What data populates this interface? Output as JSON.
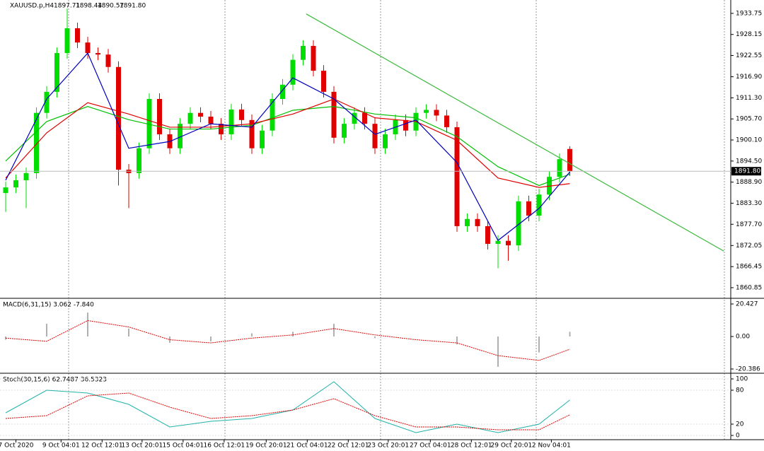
{
  "chart_data": [
    {
      "type": "candlestick",
      "title": "XAUUSD.p,H4",
      "header_values": [
        1897.71,
        1898.44,
        1890.57,
        {
          "value": 1891.8,
          "label": "1891.80"
        }
      ],
      "ylim": [
        1858.4,
        1937.3
      ],
      "yticks": [
        1933.75,
        1928.15,
        1922.55,
        {
          "value": 1916.9,
          "label": "1916.90"
        },
        {
          "value": 1911.3,
          "label": "1911.30"
        },
        {
          "value": 1905.7,
          "label": "1905.70"
        },
        {
          "value": 1900.1,
          "label": "1900.10"
        },
        {
          "value": 1894.5,
          "label": "1894.50"
        },
        {
          "value": 1888.9,
          "label": "1888.90"
        },
        {
          "value": 1883.3,
          "label": "1883.30"
        },
        {
          "value": 1877.7,
          "label": "1877.70"
        },
        1872.05,
        1866.45,
        1860.85
      ],
      "xticks": [
        {
          "value": 1,
          "label": "7 Oct 2020"
        },
        {
          "value": 5.4,
          "label": "9 Oct 04:01"
        },
        {
          "value": 9.4,
          "label": "12 Oct 12:01"
        },
        {
          "value": 13.3,
          "label": "13 Oct 20:01"
        },
        {
          "value": 17.3,
          "label": "15 Oct 04:01"
        },
        {
          "value": 21.3,
          "label": "16 Oct 12:01"
        },
        {
          "value": 25.4,
          "label": "19 Oct 20:01"
        },
        {
          "value": 29.4,
          "label": "21 Oct 04:01"
        },
        {
          "value": 33.4,
          "label": "22 Oct 12:01"
        },
        {
          "value": 37.3,
          "label": "23 Oct 20:01"
        },
        {
          "value": 41.4,
          "label": "27 Oct 04:01"
        },
        {
          "value": 45.4,
          "label": "28 Oct 12:01"
        },
        {
          "value": 49.3,
          "label": "29 Oct 20:01"
        },
        {
          "value": 53.2,
          "label": "2 Nov 04:01"
        }
      ],
      "up_color": "#00dd00",
      "down_color": "#e00000",
      "open": [
        1886.0,
        1887.5,
        1889.4,
        1891.3,
        1907.3,
        1912.9,
        1923.2,
        1929.8,
        1926.0,
        1923.2,
        1922.8,
        1919.5,
        1892.2,
        1891.3,
        1897.9,
        1911.0,
        1901.6,
        1897.9,
        1904.4,
        1907.3,
        1906.3,
        1904.4,
        1901.6,
        1908.2,
        1905.4,
        1897.9,
        1902.6,
        1911.0,
        1914.8,
        1921.4,
        1925.1,
        1918.5,
        1912.9,
        1900.7,
        1904.4,
        1907.3,
        1904.4,
        1897.9,
        1901.6,
        1905.4,
        1902.6,
        1907.3,
        1908.1,
        1906.6,
        1903.5,
        1877.2,
        1879.1,
        1877.2,
        1872.5,
        1873.3,
        1872.1,
        1883.8,
        1880.0,
        1885.6,
        1890.3,
        1897.71
      ],
      "high": [
        1889.0,
        1890.9,
        1892.8,
        1908.8,
        1914.4,
        1924.7,
        1935.0,
        1931.3,
        1927.5,
        1924.7,
        1924.3,
        1921.0,
        1893.7,
        1899.4,
        1912.5,
        1912.5,
        1903.1,
        1905.9,
        1908.8,
        1908.8,
        1907.8,
        1905.9,
        1909.7,
        1909.7,
        1906.9,
        1904.1,
        1912.5,
        1916.3,
        1922.9,
        1926.6,
        1926.6,
        1920.0,
        1914.4,
        1905.9,
        1908.8,
        1908.8,
        1905.9,
        1903.1,
        1906.9,
        1906.9,
        1908.8,
        1909.6,
        1909.6,
        1908.1,
        1905.0,
        1880.6,
        1880.6,
        1878.7,
        1874.8,
        1874.8,
        1885.3,
        1885.3,
        1887.1,
        1891.8,
        1896.5,
        1898.44
      ],
      "low": [
        1881.0,
        1886.0,
        1882.0,
        1889.8,
        1905.8,
        1911.4,
        1921.7,
        1924.5,
        1921.7,
        1921.3,
        1918.0,
        1888.0,
        1882.0,
        1889.8,
        1896.4,
        1900.1,
        1896.4,
        1896.4,
        1902.9,
        1904.8,
        1902.9,
        1900.1,
        1900.1,
        1903.9,
        1896.4,
        1896.4,
        1901.1,
        1909.5,
        1913.3,
        1919.9,
        1917.0,
        1911.4,
        1899.2,
        1899.2,
        1902.9,
        1902.9,
        1896.4,
        1896.4,
        1900.1,
        1901.1,
        1901.1,
        1905.8,
        1905.1,
        1902.0,
        1875.7,
        1875.7,
        1875.7,
        1871.0,
        1866.0,
        1868.0,
        1870.6,
        1878.5,
        1878.5,
        1884.1,
        1888.8,
        1890.57
      ],
      "close": [
        1887.5,
        1889.4,
        1891.3,
        1907.3,
        1912.9,
        1923.2,
        1929.8,
        1926.0,
        1923.2,
        1922.8,
        1919.5,
        1892.2,
        1891.3,
        1897.9,
        1911.0,
        1901.6,
        1897.9,
        1904.4,
        1907.3,
        1906.3,
        1904.4,
        1901.6,
        1908.2,
        1905.4,
        1897.9,
        1902.6,
        1911.0,
        1914.8,
        1921.4,
        1925.1,
        1918.5,
        1912.9,
        1900.7,
        1904.4,
        1907.3,
        1904.4,
        1897.9,
        1901.6,
        1905.4,
        1902.6,
        1907.3,
        1908.1,
        1906.6,
        1903.5,
        1877.2,
        1879.1,
        1877.2,
        1872.5,
        1873.3,
        1872.1,
        1883.8,
        1880.0,
        1885.6,
        1890.3,
        1895.0,
        1891.8
      ],
      "series": [
        {
          "color": "#00c000",
          "x": [
            0,
            4,
            8,
            12,
            16,
            20,
            24,
            28,
            32,
            36,
            40,
            44,
            48,
            52,
            55
          ],
          "values": [
            1894.5,
            1905,
            1909,
            1905.5,
            1903,
            1903,
            1904,
            1908,
            1909,
            1907,
            1906,
            1901,
            1893,
            1888,
            1891
          ]
        },
        {
          "color": "#e00000",
          "x": [
            0,
            4,
            8,
            12,
            16,
            20,
            24,
            28,
            32,
            36,
            40,
            44,
            48,
            52,
            55
          ],
          "values": [
            1890,
            1902,
            1910,
            1907,
            1903.5,
            1903.5,
            1904.4,
            1907,
            1911,
            1906,
            1905,
            1900,
            1890,
            1887.5,
            1888.5
          ]
        },
        {
          "color": "#0000c0",
          "x": [
            0,
            4,
            8,
            12,
            16,
            20,
            24,
            28,
            32,
            36,
            40,
            44,
            48,
            52,
            55
          ],
          "values": [
            1889.4,
            1911,
            1923.2,
            1897.9,
            1899.7,
            1904.4,
            1903.5,
            1916.6,
            1911,
            1901.6,
            1905.4,
            1894.1,
            1873.4,
            1881.9,
            1891.6
          ]
        },
        {
          "color": "#3cb93c",
          "x": [
            29.3,
            70
          ],
          "values": [
            1933.6,
            1870.6
          ]
        }
      ]
    },
    {
      "type": "bar",
      "title": "MACD(6,31,15) 3.062 -7.840",
      "color": "#b0b0b0",
      "ylim": [
        -23.05,
        23.09
      ],
      "yticks": [
        20.427,
        {
          "value": 0,
          "label": "0.00"
        },
        -20.386
      ],
      "x": [
        0,
        4,
        8,
        12,
        16,
        20,
        24,
        28,
        32,
        36,
        40,
        44,
        48,
        52,
        55
      ],
      "values": [
        -2,
        8,
        15,
        5,
        -4,
        -3,
        2,
        3,
        8,
        -1,
        0,
        -5,
        -19,
        -10,
        3
      ],
      "series": [
        {
          "color": "#e00000",
          "x": [
            0,
            4,
            8,
            12,
            16,
            20,
            24,
            28,
            32,
            36,
            40,
            44,
            48,
            52,
            55
          ],
          "values": [
            -1,
            -3,
            10,
            6,
            -2,
            -4,
            -1,
            1,
            5,
            1,
            -2,
            -4,
            -12,
            -15,
            -8
          ]
        }
      ]
    },
    {
      "type": "line",
      "title": "Stoch(30,15,6) 62.7487 36.5323",
      "ylim": [
        -7.5,
        107.5
      ],
      "yticks": [
        100,
        80,
        20,
        0
      ],
      "series": [
        {
          "color": "#20b2aa",
          "x": [
            0,
            4,
            8,
            12,
            16,
            20,
            24,
            28,
            32,
            36,
            40,
            44,
            48,
            52,
            55
          ],
          "values": [
            40,
            80,
            75,
            55,
            15,
            25,
            30,
            45,
            95,
            30,
            5,
            20,
            5,
            20,
            62.7
          ]
        },
        {
          "color": "#e00000",
          "x": [
            0,
            4,
            8,
            12,
            16,
            20,
            24,
            28,
            32,
            36,
            40,
            44,
            48,
            52,
            55
          ],
          "values": [
            30,
            35,
            70,
            75,
            50,
            30,
            35,
            45,
            65,
            35,
            15,
            15,
            10,
            10,
            36.5
          ]
        }
      ]
    }
  ]
}
